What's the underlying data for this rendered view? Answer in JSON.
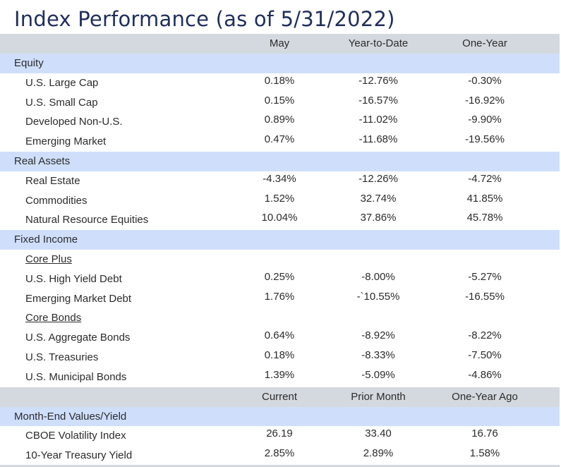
{
  "title": "Index Performance (as of 5/31/2022)",
  "perf_header": {
    "c1": "May",
    "c2": "Year-to-Date",
    "c3": "One-Year"
  },
  "sections": {
    "equity": {
      "label": "Equity",
      "rows": [
        {
          "name": "U.S. Large Cap",
          "may": "0.18%",
          "ytd": "-12.76%",
          "one_year": "-0.30%"
        },
        {
          "name": "U.S. Small Cap",
          "may": "0.15%",
          "ytd": "-16.57%",
          "one_year": "-16.92%"
        },
        {
          "name": "Developed Non-U.S.",
          "may": "0.89%",
          "ytd": "-11.02%",
          "one_year": "-9.90%"
        },
        {
          "name": "Emerging Market",
          "may": "0.47%",
          "ytd": "-11.68%",
          "one_year": "-19.56%"
        }
      ]
    },
    "real_assets": {
      "label": "Real Assets",
      "rows": [
        {
          "name": "Real Estate",
          "may": "-4.34%",
          "ytd": "-12.26%",
          "one_year": "-4.72%"
        },
        {
          "name": "Commodities",
          "may": "1.52%",
          "ytd": "32.74%",
          "one_year": "41.85%"
        },
        {
          "name": "Natural Resource Equities",
          "may": "10.04%",
          "ytd": "37.86%",
          "one_year": "45.78%"
        }
      ]
    },
    "fixed_income": {
      "label": "Fixed Income",
      "core_plus": {
        "label": "Core Plus",
        "rows": [
          {
            "name": "U.S. High Yield Debt",
            "may": "0.25%",
            "ytd": "-8.00%",
            "one_year": "-5.27%"
          },
          {
            "name": "Emerging Market Debt",
            "may": "1.76%",
            "ytd": "-`10.55%",
            "one_year": "-16.55%"
          }
        ]
      },
      "core_bonds": {
        "label": "Core Bonds",
        "rows": [
          {
            "name": "U.S. Aggregate Bonds",
            "may": "0.64%",
            "ytd": "-8.92%",
            "one_year": "-8.22%"
          },
          {
            "name": "U.S. Treasuries",
            "may": "0.18%",
            "ytd": "-8.33%",
            "one_year": "-7.50%"
          },
          {
            "name": "U.S. Municipal Bonds",
            "may": "1.39%",
            "ytd": "-5.09%",
            "one_year": "-4.86%"
          }
        ]
      }
    }
  },
  "values_header": {
    "c1": "Current",
    "c2": "Prior Month",
    "c3": "One-Year Ago"
  },
  "month_end": {
    "label": "Month-End Values/Yield",
    "rows": [
      {
        "name": "CBOE Volatility Index",
        "current": "26.19",
        "prior_month": "33.40",
        "one_year_ago": "16.76"
      },
      {
        "name": "10-Year Treasury Yield",
        "current": "2.85%",
        "prior_month": "2.89%",
        "one_year_ago": "1.58%"
      }
    ]
  }
}
